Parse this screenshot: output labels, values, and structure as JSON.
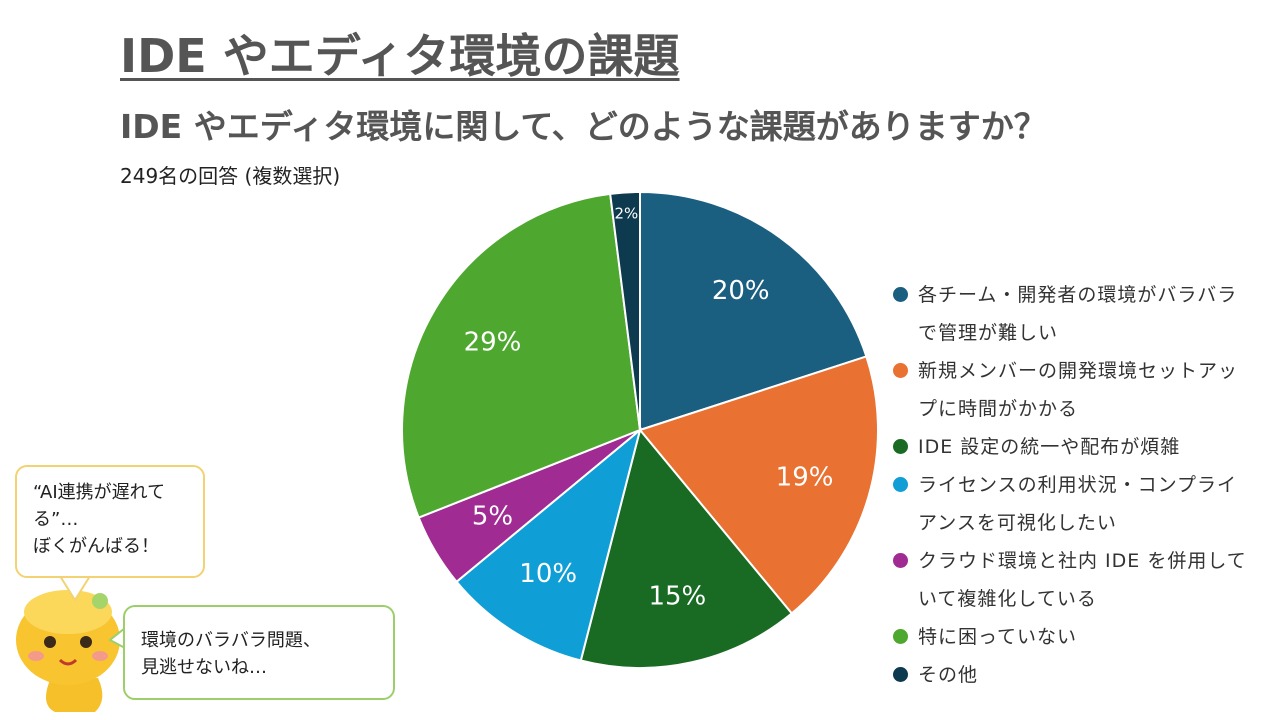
{
  "chart_data": {
    "type": "pie",
    "title": "IDE やエディタ環境の課題",
    "subtitle": "IDE やエディタ環境に関して、どのような課題がありますか？",
    "note": "249名の回答 (複数選択)",
    "categories": [
      "各チーム・開発者の環境がバラバラで管理が難しい",
      "新規メンバーの開発環境セットアップに時間がかかる",
      "IDE 設定の統一や配布が煩雑",
      "ライセンスの利用状況・コンプライアンスを可視化したい",
      "クラウド環境と社内 IDE を併用していて複雑化している",
      "特に困っていない",
      "その他"
    ],
    "values": [
      20,
      19,
      15,
      10,
      5,
      29,
      2
    ],
    "value_labels": [
      "20%",
      "19%",
      "15%",
      "10%",
      "5%",
      "29%",
      "2%"
    ],
    "colors": [
      "#1a5e80",
      "#e97132",
      "#196b24",
      "#0f9ed5",
      "#a02b93",
      "#4ea72e",
      "#0e3a4f"
    ],
    "legend": "right",
    "annotations": [
      [
        "“AI連携が遅れてる”…",
        "ぼくがんばる！"
      ],
      [
        "環境のバラバラ問題、",
        "見逃せないね…"
      ]
    ]
  }
}
